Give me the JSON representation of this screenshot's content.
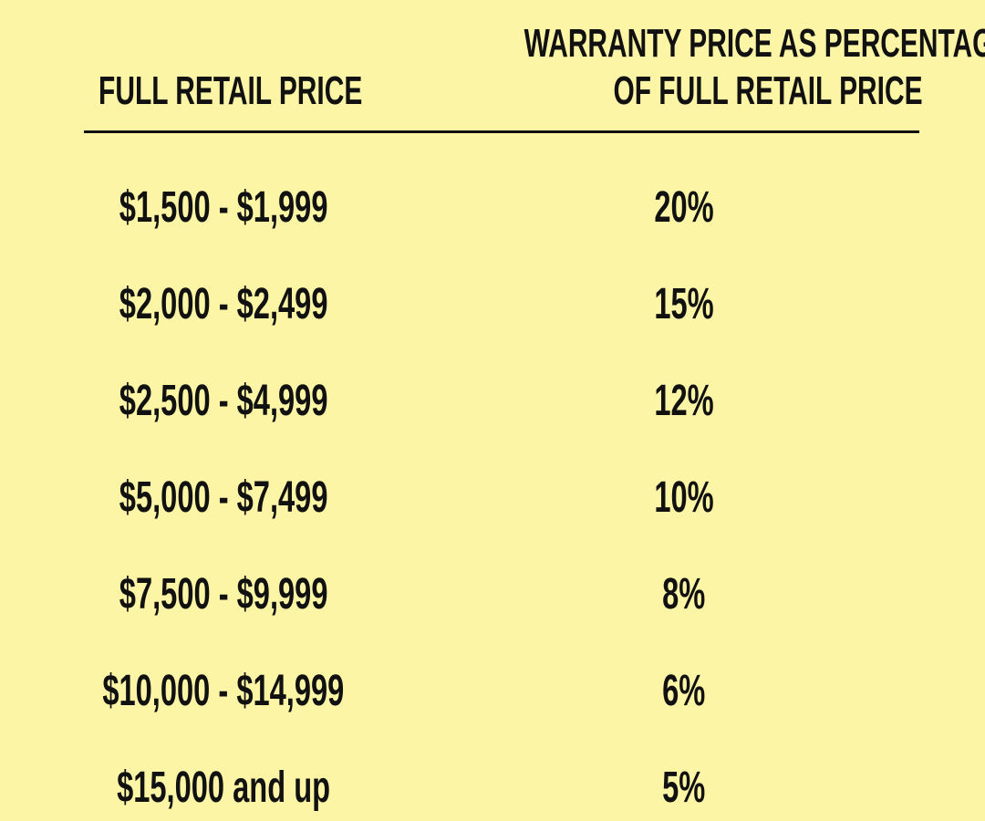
{
  "table": {
    "headers": [
      "FULL RETAIL PRICE",
      "WARRANTY PRICE AS PERCENTAGE OF FULL RETAIL PRICE"
    ],
    "rows": [
      [
        "$1,500 - $1,999",
        "20%"
      ],
      [
        "$2,000 - $2,499",
        "15%"
      ],
      [
        "$2,500 - $4,999",
        "12%"
      ],
      [
        "$5,000 - $7,499",
        "10%"
      ],
      [
        "$7,500 - $9,999",
        "8%"
      ],
      [
        "$10,000 - $14,999",
        "6%"
      ],
      [
        "$15,000 and up",
        "5%"
      ]
    ]
  }
}
